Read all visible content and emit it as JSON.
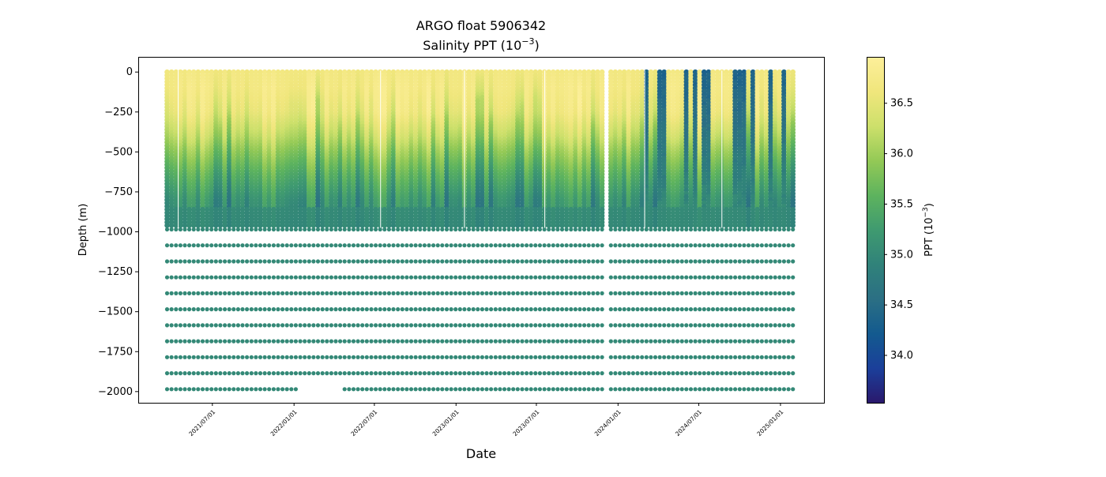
{
  "chart_data": {
    "type": "scatter",
    "title": "ARGO float 5906342",
    "subtitle": "Salinity PPT (10",
    "subtitle_exp": "−3",
    "subtitle_end": ")",
    "xlabel": "Date",
    "ylabel": "Depth (m)",
    "xlim": [
      "2021-01-15",
      "2025-04-09"
    ],
    "ylim": [
      -2070,
      95
    ],
    "x_ticks": [
      "2021/07/01",
      "2022/01/01",
      "2022/07/01",
      "2023/01/01",
      "2023/07/01",
      "2024/01/01",
      "2024/07/01",
      "2025/01/01"
    ],
    "y_ticks": [
      0,
      -250,
      -500,
      -750,
      -1000,
      -1250,
      -1500,
      -1750,
      -2000
    ],
    "y_tick_labels": [
      "0",
      "−250",
      "−500",
      "−750",
      "−1000",
      "−1250",
      "−1500",
      "−1750",
      "−2000"
    ],
    "profile_dates_range": [
      "2021-03-21",
      "2025-01-31"
    ],
    "profile_interval_days": 10,
    "mean_profile": {
      "depth": [
        0,
        -100,
        -250,
        -400,
        -500,
        -650,
        -800,
        -980,
        -1090,
        -1500,
        -1990
      ],
      "salinity": [
        36.7,
        36.75,
        36.65,
        36.3,
        36.0,
        35.6,
        35.25,
        35.05,
        35.0,
        35.0,
        35.0
      ]
    },
    "deep_levels": [
      -985,
      -1085,
      -1185,
      -1285,
      -1385,
      -1485,
      -1585,
      -1685,
      -1785,
      -1885,
      -1985
    ],
    "colorbar": {
      "label": "PPT (10",
      "label_exp": "−3",
      "label_end": ")",
      "range": [
        33.53,
        36.96
      ],
      "ticks": [
        34.0,
        34.5,
        35.0,
        35.5,
        36.0,
        36.5
      ],
      "tick_labels": [
        "34.0",
        "34.5",
        "35.0",
        "35.5",
        "36.0",
        "36.5"
      ],
      "colormap": [
        "#2a186c",
        "#1b3f9a",
        "#135a8f",
        "#2b6f84",
        "#30827a",
        "#3f9a70",
        "#5db35e",
        "#93c956",
        "#cde06b",
        "#f0e67c",
        "#fdef9a"
      ]
    }
  }
}
